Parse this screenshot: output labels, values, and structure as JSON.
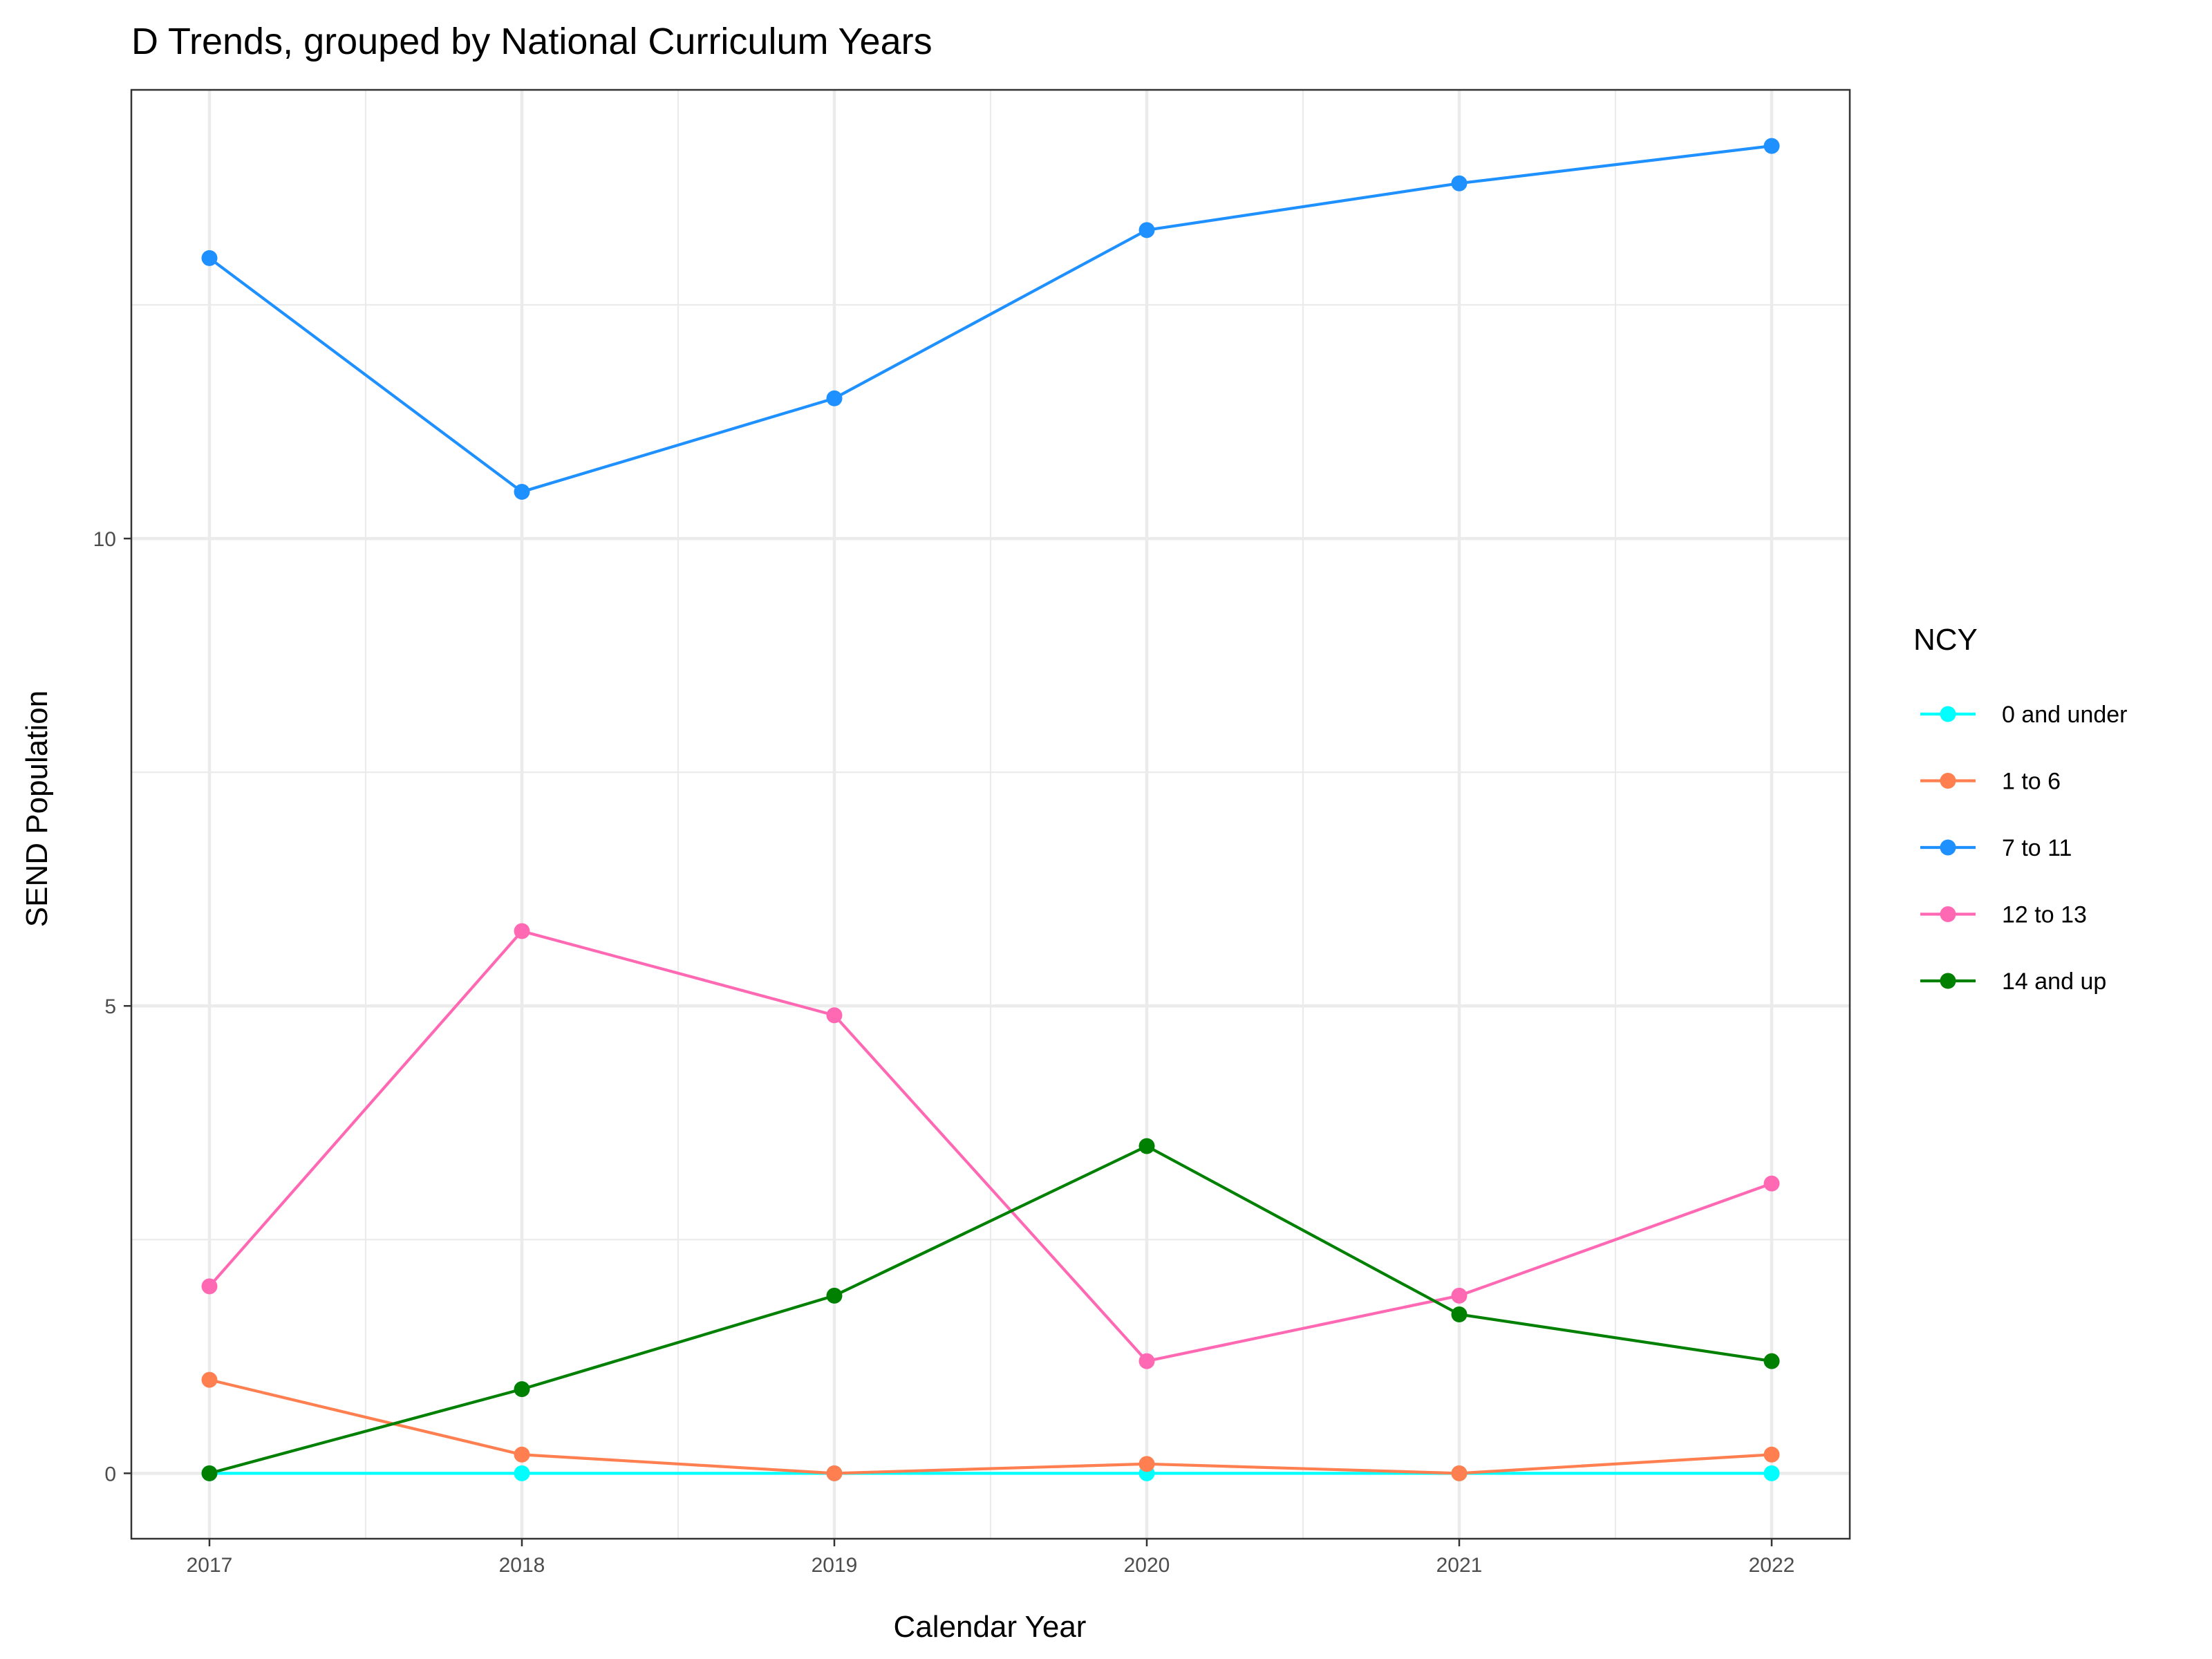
{
  "chart_data": {
    "type": "line",
    "title": "D Trends, grouped by National Curriculum Years",
    "xlabel": "Calendar Year",
    "ylabel": "SEND Population",
    "x": [
      2017,
      2018,
      2019,
      2020,
      2021,
      2022
    ],
    "x_tick_labels": [
      "2017",
      "2018",
      "2019",
      "2020",
      "2021",
      "2022"
    ],
    "xlim": [
      2016.75,
      2022.25
    ],
    "ylim": [
      -0.7,
      14.8
    ],
    "y_ticks": [
      0,
      5,
      10
    ],
    "y_tick_labels": [
      "0",
      "5",
      "10"
    ],
    "grid": true,
    "legend": {
      "title": "NCY",
      "position": "right"
    },
    "series": [
      {
        "name": "0 and under",
        "color": "#00FFFF",
        "values": [
          0,
          0,
          0,
          0,
          0,
          0
        ]
      },
      {
        "name": "1 to 6",
        "color": "#FF7F50",
        "values": [
          1.0,
          0.2,
          0.0,
          0.1,
          0.0,
          0.2
        ]
      },
      {
        "name": "7 to 11",
        "color": "#1E90FF",
        "values": [
          13.0,
          10.5,
          11.5,
          13.3,
          13.8,
          14.2
        ]
      },
      {
        "name": "12 to 13",
        "color": "#FF69B4",
        "values": [
          2.0,
          5.8,
          4.9,
          1.2,
          1.9,
          3.1
        ]
      },
      {
        "name": "14 and up",
        "color": "#008000",
        "values": [
          0.0,
          0.9,
          1.9,
          3.5,
          1.7,
          1.2
        ]
      }
    ]
  }
}
